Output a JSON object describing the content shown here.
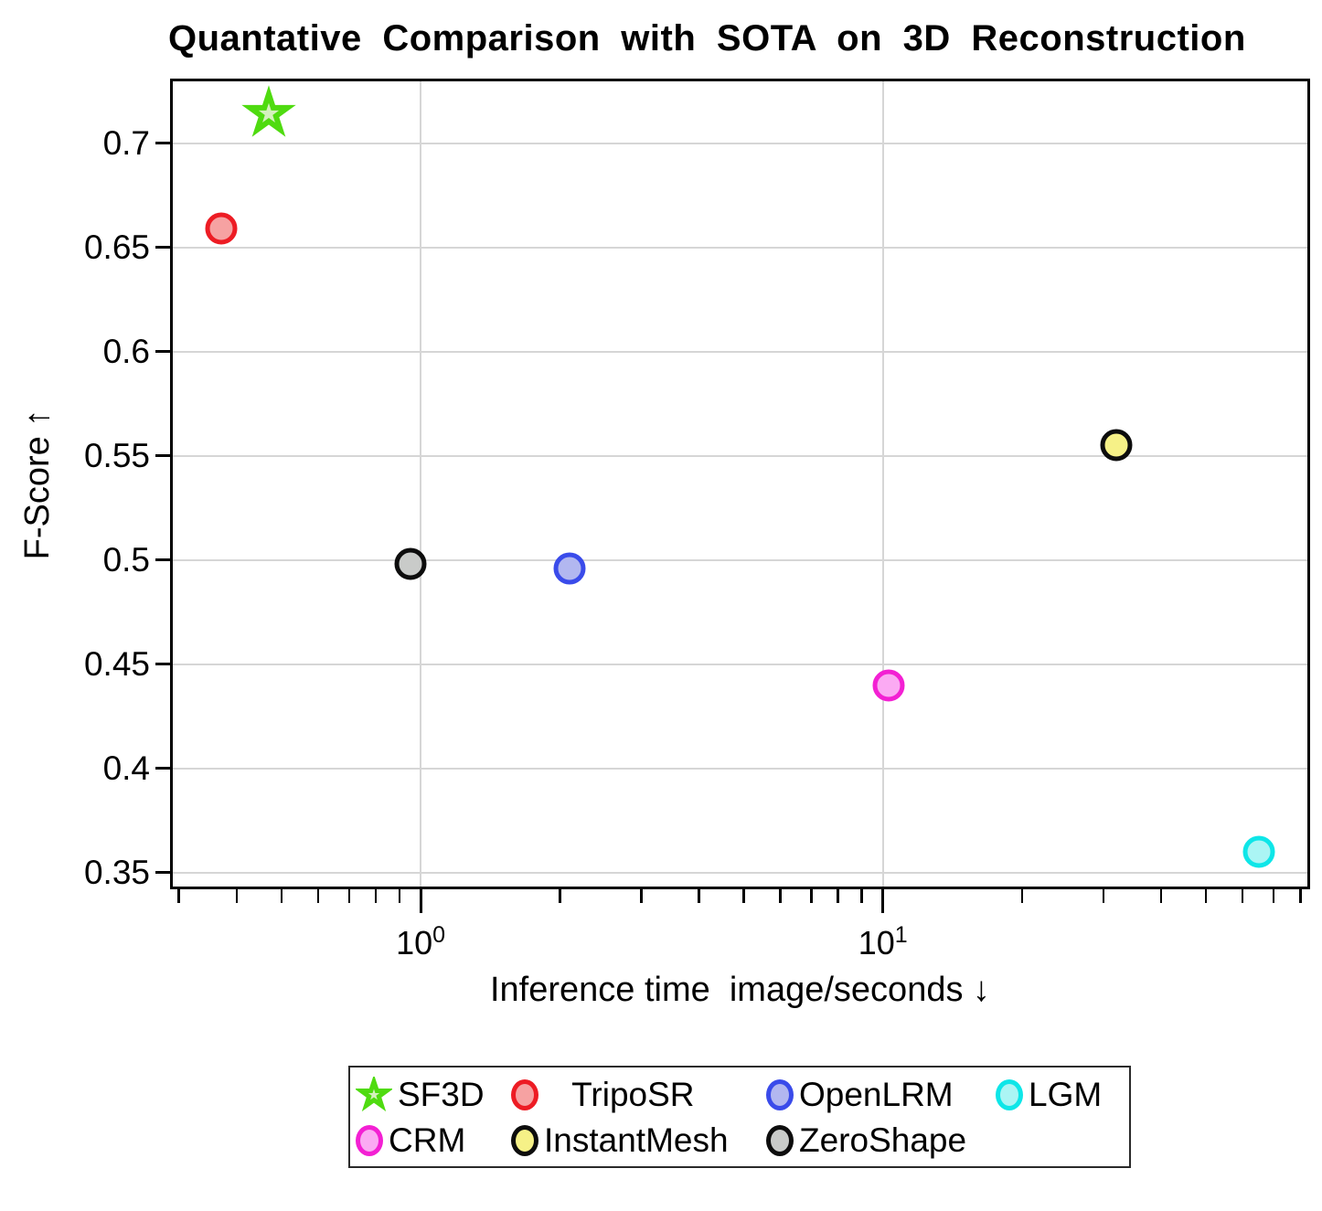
{
  "title": "Quantative Comparison with SOTA on 3D Reconstruction",
  "chart_data": {
    "type": "scatter",
    "title": "Quantative Comparison with SOTA on 3D Reconstruction",
    "xlabel": "Inference time  image/seconds ↓",
    "ylabel": "F-Score ↑",
    "x_scale": "log",
    "xlim": [
      0.287,
      84
    ],
    "ylim": [
      0.342,
      0.731
    ],
    "grid": true,
    "y_ticks": [
      {
        "v": 0.35,
        "label": "0.35"
      },
      {
        "v": 0.4,
        "label": "0.4"
      },
      {
        "v": 0.45,
        "label": "0.45"
      },
      {
        "v": 0.5,
        "label": "0.5"
      },
      {
        "v": 0.55,
        "label": "0.55"
      },
      {
        "v": 0.6,
        "label": "0.6"
      },
      {
        "v": 0.65,
        "label": "0.65"
      },
      {
        "v": 0.7,
        "label": "0.7"
      }
    ],
    "x_major_ticks": [
      {
        "v": 1,
        "base": "10",
        "exp": "0"
      },
      {
        "v": 10,
        "base": "10",
        "exp": "1"
      }
    ],
    "x_minor_ticks": [
      0.3,
      0.4,
      0.5,
      0.6,
      0.7,
      0.8,
      0.9,
      2,
      3,
      4,
      5,
      6,
      7,
      8,
      9,
      20,
      30,
      40,
      50,
      60,
      70,
      80
    ],
    "series": [
      {
        "name": "SF3D",
        "marker": "star",
        "x": 0.47,
        "y": 0.713,
        "color": "#4fdb10",
        "fill": "#d4f1be"
      },
      {
        "name": "TripoSR",
        "marker": "circle",
        "x": 0.37,
        "y": 0.659,
        "color": "#ed1c24",
        "fill": "#f6a2a2"
      },
      {
        "name": "OpenLRM",
        "marker": "circle",
        "x": 2.1,
        "y": 0.496,
        "color": "#3a4bea",
        "fill": "#b2b7f0"
      },
      {
        "name": "LGM",
        "marker": "circle",
        "x": 65,
        "y": 0.36,
        "color": "#0ee6e8",
        "fill": "#abf5f4"
      },
      {
        "name": "CRM",
        "marker": "circle",
        "x": 10.3,
        "y": 0.44,
        "color": "#f320d3",
        "fill": "#fbaaf3"
      },
      {
        "name": "InstantMesh",
        "marker": "circle",
        "x": 32,
        "y": 0.555,
        "color": "#0d0d0d",
        "fill": "#f6f187"
      },
      {
        "name": "ZeroShape",
        "marker": "circle",
        "x": 0.95,
        "y": 0.498,
        "color": "#0d0d0d",
        "fill": "#c9cbc9"
      }
    ],
    "legend": {
      "position": "below-axis",
      "rows": [
        [
          {
            "name": "SF3D",
            "label": "SF3D"
          },
          {
            "name": "TripoSR",
            "label": "   TripoSR"
          },
          {
            "name": "OpenLRM",
            "label": "OpenLRM"
          },
          {
            "name": "LGM",
            "label": "LGM"
          }
        ],
        [
          {
            "name": "CRM",
            "label": "CRM"
          },
          {
            "name": "InstantMesh",
            "label": "InstantMesh"
          },
          {
            "name": "ZeroShape",
            "label": "ZeroShape"
          }
        ]
      ]
    }
  }
}
